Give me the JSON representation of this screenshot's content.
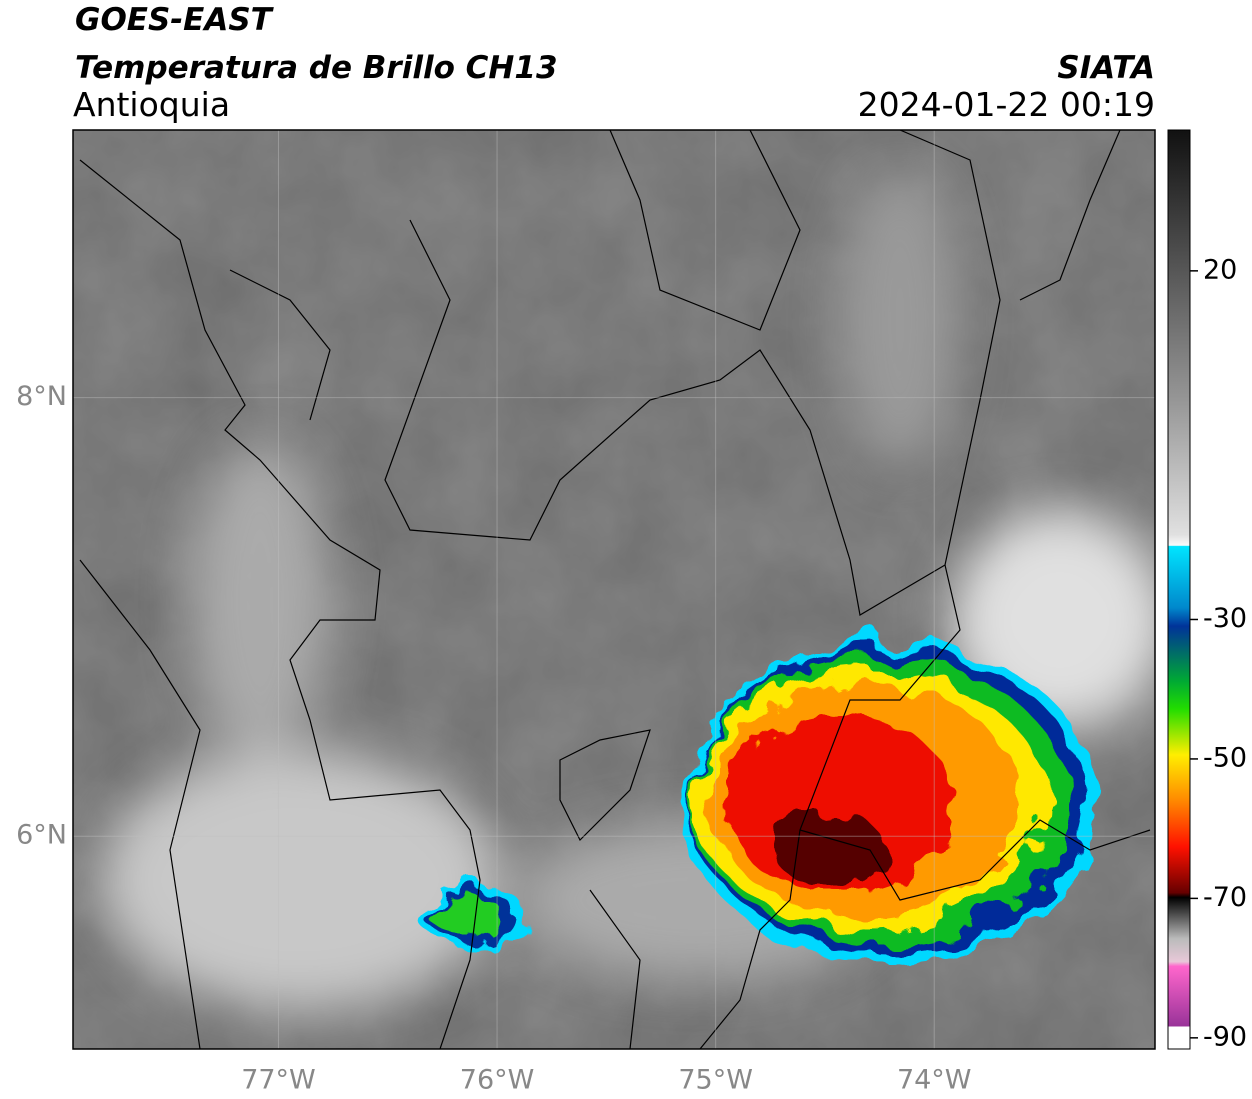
{
  "header": {
    "satellite": "GOES-EAST",
    "product": "Temperatura de Brillo CH13",
    "region": "Antioquia",
    "source": "SIATA",
    "datetime": "2024-01-22 00:19"
  },
  "map": {
    "xlim": [
      -77.94,
      -72.99
    ],
    "ylim": [
      5.03,
      9.22
    ],
    "xticks": [
      {
        "value": -77,
        "label": "77°W"
      },
      {
        "value": -76,
        "label": "76°W"
      },
      {
        "value": -75,
        "label": "75°W"
      },
      {
        "value": -74,
        "label": "74°W"
      }
    ],
    "yticks": [
      {
        "value": 8,
        "label": "8°N"
      },
      {
        "value": 6,
        "label": "6°N"
      }
    ]
  },
  "colorbar": {
    "lim": [
      -91.6,
      40.2
    ],
    "ticks": [
      20,
      -30,
      -50,
      -70,
      -90
    ]
  }
}
